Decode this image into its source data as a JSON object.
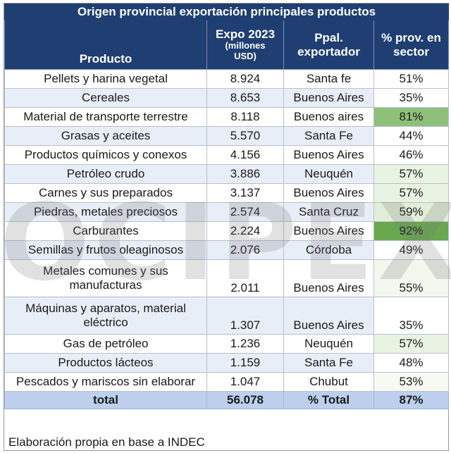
{
  "title": "Origen provincial exportación principales productos",
  "headers": {
    "producto": "Producto",
    "expo_line1": "Expo 2023",
    "expo_line2": "(millones",
    "expo_line3": "USD)",
    "exportador_line1": "Ppal.",
    "exportador_line2": "exportador",
    "pct_line1": "% prov. en",
    "pct_line2": "sector"
  },
  "rows": [
    {
      "producto": "Pellets y harina vegetal",
      "expo": "8.924",
      "exportador": "Santa fe",
      "pct": "51%",
      "pct_color": "#ffffff"
    },
    {
      "producto": "Cereales",
      "expo": "8.653",
      "exportador": "Buenos Aires",
      "pct": "35%",
      "pct_color": "#ffffff"
    },
    {
      "producto": "Material de transporte terrestre",
      "expo": "8.118",
      "exportador": "Buenos aires",
      "pct": "81%",
      "pct_color": "#8fc07a"
    },
    {
      "producto": "Grasas y aceites",
      "expo": "5.570",
      "exportador": "Santa Fe",
      "pct": "44%",
      "pct_color": "#ffffff"
    },
    {
      "producto": "Productos químicos y conexos",
      "expo": "4.156",
      "exportador": "Buenos Aires",
      "pct": "46%",
      "pct_color": "#ffffff"
    },
    {
      "producto": "Petróleo crudo",
      "expo": "3.886",
      "exportador": "Neuquén",
      "pct": "57%",
      "pct_color": "#e9f3e1"
    },
    {
      "producto": "Carnes y sus preparados",
      "expo": "3.137",
      "exportador": "Buenos Aires",
      "pct": "57%",
      "pct_color": "#e9f3e1"
    },
    {
      "producto": "Piedras, metales preciosos",
      "expo": "2.574",
      "exportador": "Santa Cruz",
      "pct": "59%",
      "pct_color": "#e2efd8"
    },
    {
      "producto": "Carburantes",
      "expo": "2.224",
      "exportador": "Buenos Aires",
      "pct": "92%",
      "pct_color": "#6aa84f"
    },
    {
      "producto": "Semillas y frutos oleaginosos",
      "expo": "2.076",
      "exportador": "Córdoba",
      "pct": "49%",
      "pct_color": "#ffffff"
    },
    {
      "producto": "Metales comunes y sus manufacturas",
      "expo": "2.011",
      "exportador": "Buenos Aires",
      "pct": "55%",
      "pct_color": "#f3f8ee"
    },
    {
      "producto": "Máquinas y aparatos, material eléctrico",
      "expo": "1.307",
      "exportador": "Buenos Aires",
      "pct": "35%",
      "pct_color": "#ffffff"
    },
    {
      "producto": "Gas de petróleo",
      "expo": "1.236",
      "exportador": "Neuquén",
      "pct": "57%",
      "pct_color": "#e9f3e1"
    },
    {
      "producto": "Productos lácteos",
      "expo": "1.159",
      "exportador": "Santa Fe",
      "pct": "48%",
      "pct_color": "#ffffff"
    },
    {
      "producto": "Pescados y mariscos sin elaborar",
      "expo": "1.047",
      "exportador": "Chubut",
      "pct": "53%",
      "pct_color": "#f6faf2"
    }
  ],
  "total": {
    "label": "total",
    "expo": "56.078",
    "exportador_label": "% Total",
    "pct": "87%"
  },
  "footer": "Elaboración propia en base a INDEC",
  "watermark": "OCIPEX"
}
